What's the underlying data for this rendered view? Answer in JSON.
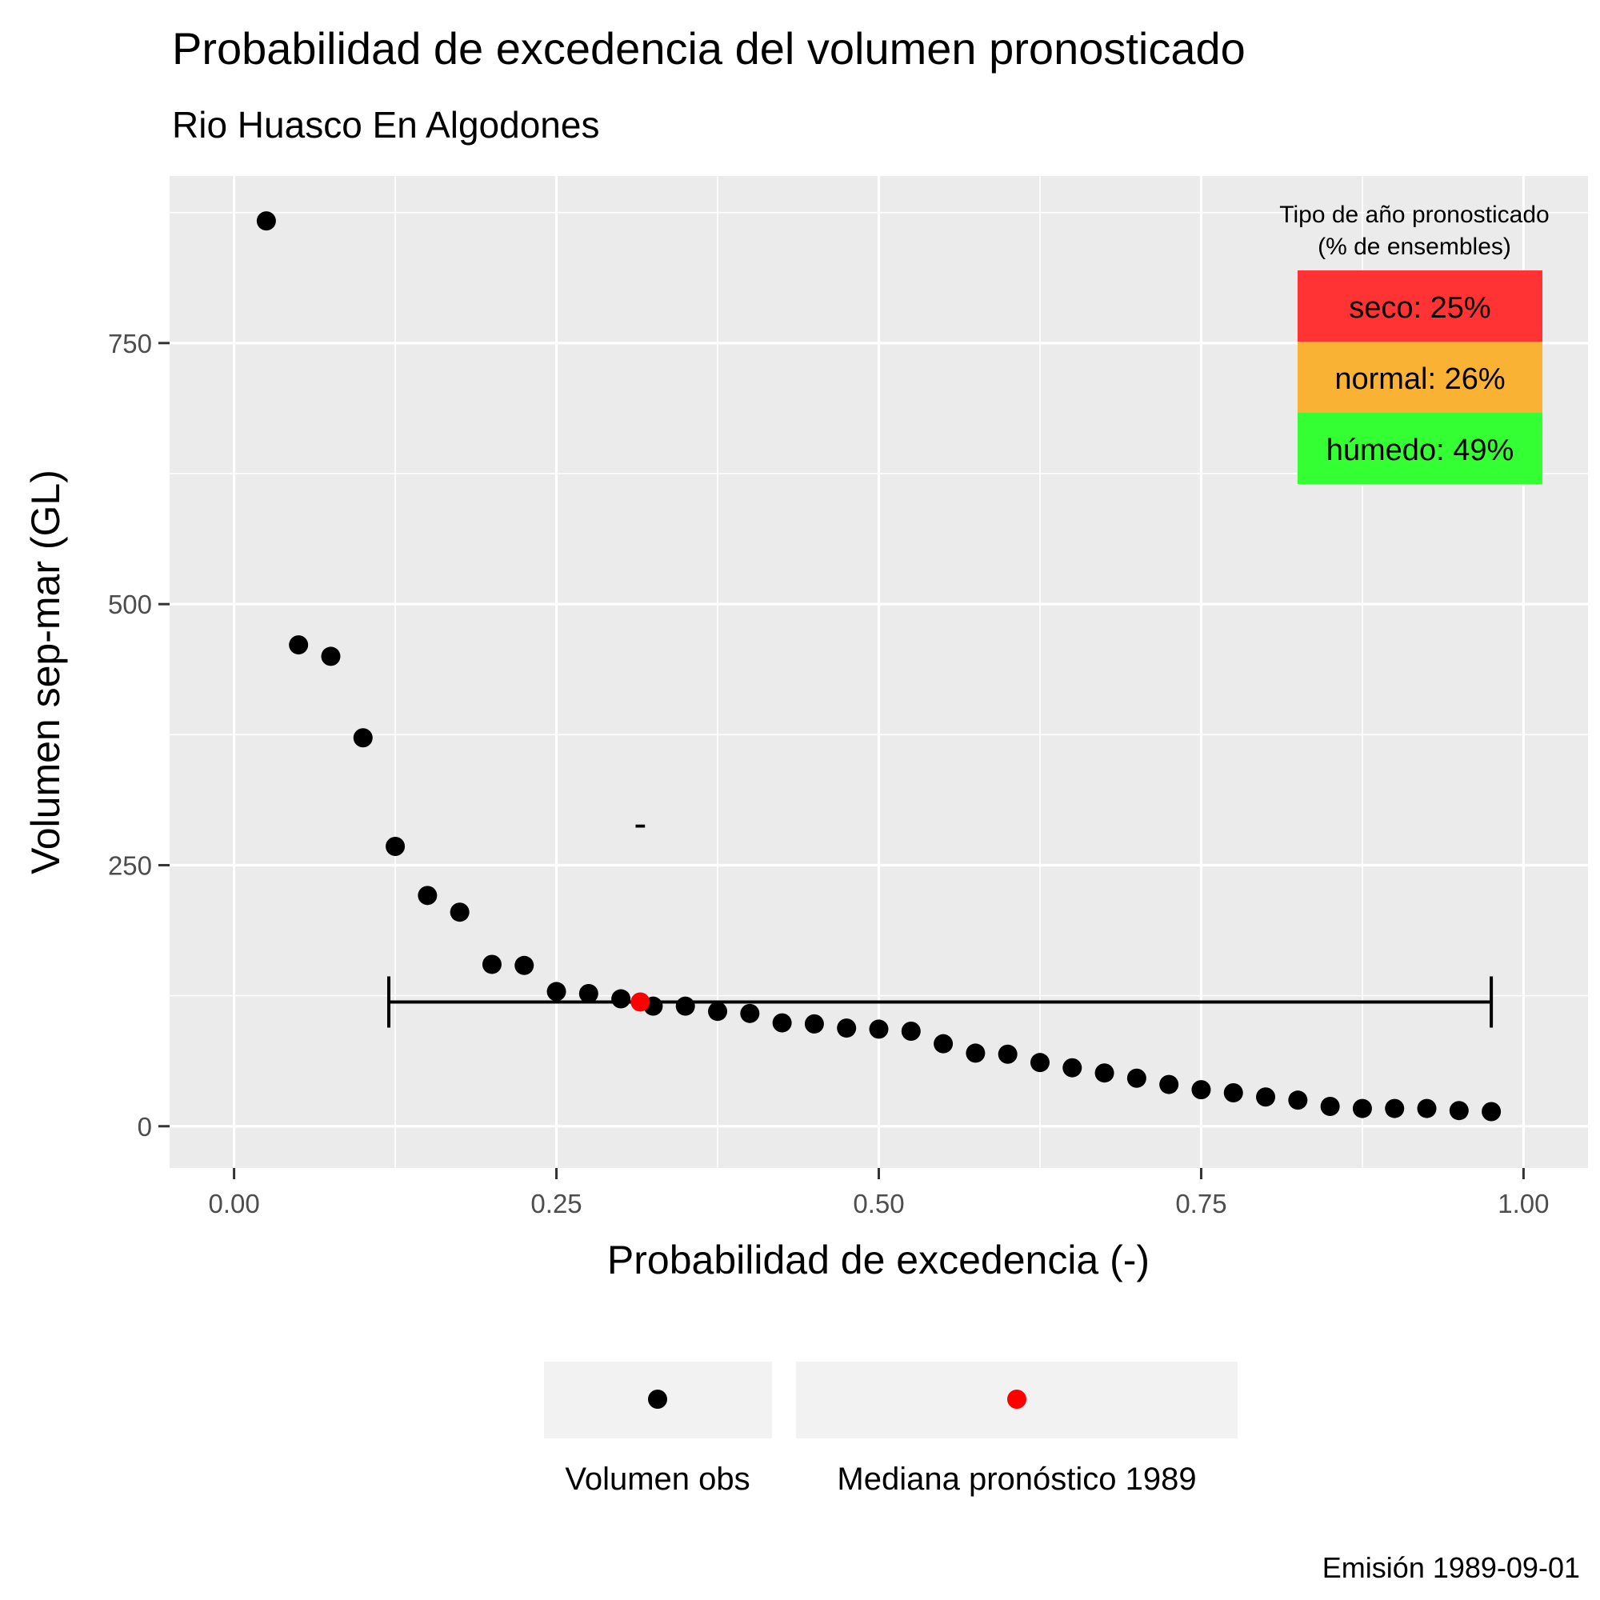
{
  "chart_data": {
    "type": "scatter",
    "title": "Probabilidad de excedencia del volumen pronosticado",
    "subtitle": "Rio Huasco En Algodones",
    "xlabel": "Probabilidad de excedencia (-)",
    "ylabel": "Volumen sep-mar (GL)",
    "xlim": [
      -0.05,
      1.05
    ],
    "ylim": [
      -40,
      910
    ],
    "x_ticks": [
      0,
      0.25,
      0.5,
      0.75,
      1
    ],
    "x_tick_labels": [
      "0.00",
      "0.25",
      "0.50",
      "0.75",
      "1.00"
    ],
    "y_ticks": [
      0,
      250,
      500,
      750
    ],
    "y_tick_labels": [
      "0",
      "250",
      "500",
      "750"
    ],
    "grid": true,
    "legend_position": "bottom",
    "series": [
      {
        "name": "Volumen obs",
        "color": "#000000",
        "points": [
          [
            0.025,
            867
          ],
          [
            0.05,
            461
          ],
          [
            0.075,
            450
          ],
          [
            0.1,
            372
          ],
          [
            0.125,
            268
          ],
          [
            0.15,
            221
          ],
          [
            0.175,
            205
          ],
          [
            0.2,
            155
          ],
          [
            0.225,
            154
          ],
          [
            0.25,
            129
          ],
          [
            0.275,
            127
          ],
          [
            0.3,
            122
          ],
          [
            0.325,
            115
          ],
          [
            0.35,
            115
          ],
          [
            0.375,
            110
          ],
          [
            0.4,
            108
          ],
          [
            0.425,
            99
          ],
          [
            0.45,
            98
          ],
          [
            0.475,
            94
          ],
          [
            0.5,
            93
          ],
          [
            0.525,
            91
          ],
          [
            0.55,
            79
          ],
          [
            0.575,
            70
          ],
          [
            0.6,
            69
          ],
          [
            0.625,
            61
          ],
          [
            0.65,
            56
          ],
          [
            0.675,
            51
          ],
          [
            0.7,
            46
          ],
          [
            0.725,
            40
          ],
          [
            0.75,
            35
          ],
          [
            0.775,
            32
          ],
          [
            0.8,
            28
          ],
          [
            0.825,
            25
          ],
          [
            0.85,
            19
          ],
          [
            0.875,
            17
          ],
          [
            0.9,
            17
          ],
          [
            0.925,
            17
          ],
          [
            0.95,
            15
          ],
          [
            0.975,
            14
          ]
        ]
      },
      {
        "name": "Mediana pronóstico 1989",
        "color": "#ff0000",
        "points": [
          [
            0.315,
            119
          ]
        ]
      }
    ],
    "error_bar": {
      "xmin": 0.12,
      "xmax": 0.975,
      "y": 119
    },
    "annotation": {
      "text": "-",
      "x": 0.315,
      "y": 290
    },
    "forecast_box": {
      "title_line1": "Tipo de año pronosticado",
      "title_line2": "(% de ensembles)",
      "rows": [
        {
          "label": "seco: 25%",
          "color": "#ff3333"
        },
        {
          "label": "normal: 26%",
          "color": "#f9b233"
        },
        {
          "label": "húmedo: 49%",
          "color": "#33ff33"
        }
      ]
    },
    "caption": "Emisión 1989-09-01",
    "colors": {
      "panel": "#ebebeb",
      "grid": "#ffffff",
      "legend_key_bg": "#f2f2f2"
    }
  }
}
